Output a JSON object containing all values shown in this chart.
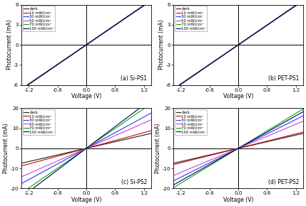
{
  "panels": [
    {
      "label": "(a) Si-PS1",
      "ylim": [
        -6,
        6
      ],
      "yticks": [
        -6,
        -3,
        0,
        3,
        6
      ],
      "slopes": [
        4.88,
        4.89,
        4.9,
        4.91,
        4.92,
        4.93
      ],
      "offsets": [
        0,
        0,
        0,
        0,
        0,
        0
      ]
    },
    {
      "label": "(b) PET-PS1",
      "ylim": [
        -6,
        6
      ],
      "yticks": [
        -6,
        -3,
        0,
        3,
        6
      ],
      "slopes": [
        4.88,
        4.89,
        4.9,
        4.91,
        4.92,
        4.93
      ],
      "offsets": [
        0,
        0,
        0,
        0,
        0,
        0
      ]
    },
    {
      "label": "(c) Si-PS2",
      "ylim": [
        -20,
        20
      ],
      "yticks": [
        -20,
        -10,
        0,
        10,
        20
      ],
      "slopes": [
        5.5,
        6.5,
        13.0,
        10.5,
        16.5,
        18.0
      ],
      "offsets": [
        0,
        0,
        0,
        0,
        0,
        0
      ]
    },
    {
      "label": "(d) PET-PS2",
      "ylim": [
        -20,
        20
      ],
      "yticks": [
        -20,
        -10,
        0,
        10,
        20
      ],
      "slopes": [
        5.5,
        6.0,
        12.0,
        10.0,
        14.5,
        13.5
      ],
      "offsets": [
        0,
        0,
        0,
        0,
        0,
        0
      ]
    }
  ],
  "xlim": [
    -1.35,
    1.35
  ],
  "xticks": [
    -1.2,
    -0.6,
    0.0,
    0.6,
    1.2
  ],
  "xlabel": "Voltage (V)",
  "ylabel": "Photocurrent (mA)",
  "legend_labels": [
    "dark",
    "10 mW/cm²",
    "30 mW/cm²",
    "50 mW/cm²",
    "70 mW/cm²",
    "100 mW/cm²"
  ],
  "colors": [
    "#333333",
    "#cc0000",
    "#3333ff",
    "#cc44cc",
    "#00aa00",
    "#000066"
  ],
  "linewidths": [
    0.9,
    0.8,
    0.8,
    0.8,
    0.8,
    0.8
  ],
  "bg_color": "#ffffff"
}
